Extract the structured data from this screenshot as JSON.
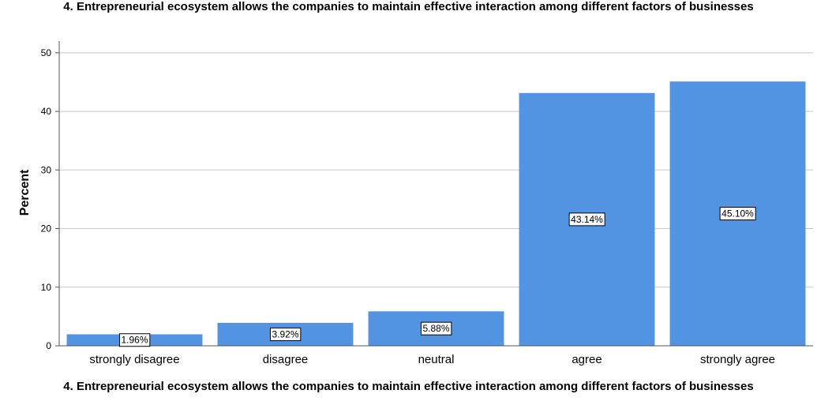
{
  "chart_data": {
    "type": "bar",
    "title": "4. Entrepreneurial ecosystem allows the companies to maintain effective interaction among different factors of businesses",
    "xlabel": "4. Entrepreneurial ecosystem allows the companies to maintain effective interaction among different factors of businesses",
    "ylabel": "Percent",
    "categories": [
      "strongly disagree",
      "disagree",
      "neutral",
      "agree",
      "strongly agree"
    ],
    "values": [
      1.96,
      3.92,
      5.88,
      43.14,
      45.1
    ],
    "data_labels": [
      "1.96%",
      "3.92%",
      "5.88%",
      "43.14%",
      "45.10%"
    ],
    "ylim": [
      0,
      52
    ],
    "yticks": [
      0,
      10,
      20,
      30,
      40,
      50
    ],
    "grid": true,
    "bar_color": "#5294e2"
  }
}
